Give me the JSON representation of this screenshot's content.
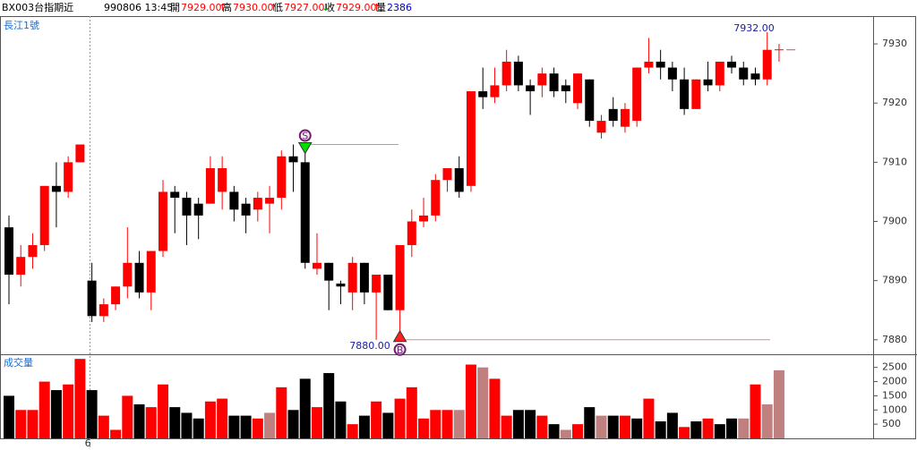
{
  "chart_data": [
    {
      "type": "candlestick",
      "title": "長江1號",
      "header": [
        "BX003台指期近",
        "990806 13:45",
        "開",
        "7929.00",
        "高",
        "7930.00",
        "低",
        "7927.00",
        "收",
        "7929.00",
        "量",
        "2386"
      ],
      "categories": [
        null,
        null,
        null,
        null,
        null,
        null,
        null,
        "6",
        null,
        null,
        null,
        null,
        null,
        null,
        null,
        null,
        null,
        null,
        null,
        null,
        null,
        null,
        null,
        null,
        null,
        null,
        null,
        null,
        null,
        null,
        null,
        null,
        null,
        null,
        null,
        null,
        null,
        null,
        null,
        null,
        null,
        null,
        null,
        null,
        null,
        null,
        null,
        null,
        null,
        null,
        null,
        null,
        null,
        null,
        null,
        null,
        null,
        null,
        null,
        null,
        null,
        null,
        null,
        null,
        null,
        null
      ],
      "open": [
        7899,
        7891,
        7894,
        7896,
        7906,
        7905,
        7910,
        7890,
        7884,
        7886,
        7889,
        7893,
        7888,
        7895,
        7905,
        7904,
        7903,
        7903,
        7905,
        7905,
        7903,
        7902,
        7903,
        7904,
        7911,
        7910,
        7892,
        7893,
        7889.5,
        7888,
        7893,
        7888,
        7891,
        7885,
        7896,
        7900,
        7901,
        7907,
        7909,
        7906,
        7922,
        7921,
        7923,
        7927,
        7923,
        7923,
        7925,
        7923,
        7920,
        7924,
        7915,
        7919,
        7916,
        7917,
        7926,
        7927,
        7926,
        7924,
        7919,
        7924,
        7923,
        7927,
        7926,
        7925,
        7924,
        7929
      ],
      "high": [
        7901,
        7896,
        7898,
        7906,
        7910,
        7911,
        7913,
        7893,
        7887,
        7889,
        7899,
        7895,
        7895,
        7907,
        7906,
        7905,
        7904,
        7911,
        7911,
        7906,
        7904,
        7905,
        7906,
        7912,
        7913,
        7913,
        7898,
        7893,
        7890,
        7894,
        7893,
        7891,
        7891,
        7896,
        7902,
        7904,
        7908,
        7909,
        7911,
        7922,
        7926,
        7926,
        7929,
        7928,
        7924,
        7926,
        7926,
        7924,
        7925,
        7924,
        7918,
        7921,
        7920,
        7926,
        7931,
        7929,
        7927,
        7926,
        7924,
        7927,
        7927,
        7928,
        7927,
        7926,
        7932,
        7930
      ],
      "low": [
        7886,
        7889,
        7892,
        7895,
        7899,
        7904,
        7910,
        7883,
        7883,
        7885,
        7887,
        7887,
        7885,
        7894,
        7898,
        7896,
        7897,
        7903,
        7902,
        7900,
        7898,
        7900,
        7898,
        7902,
        7905,
        7892,
        7891,
        7885,
        7886,
        7885,
        7886,
        7880,
        7885,
        7880,
        7894,
        7899,
        7900,
        7905,
        7904,
        7905,
        7919,
        7920,
        7922,
        7922,
        7918,
        7921,
        7921,
        7920,
        7919,
        7916,
        7914,
        7916,
        7915,
        7916,
        7925,
        7924,
        7922,
        7918,
        7919,
        7922,
        7922,
        7925,
        7923,
        7923,
        7923,
        7927
      ],
      "close": [
        7891,
        7894,
        7896,
        7906,
        7905,
        7910,
        7913,
        7884,
        7886,
        7889,
        7893,
        7888,
        7895,
        7905,
        7904,
        7901,
        7901,
        7909,
        7909,
        7902,
        7901,
        7904,
        7904,
        7911,
        7910,
        7893,
        7893,
        7890,
        7889,
        7893,
        7888,
        7891,
        7885,
        7896,
        7900,
        7901,
        7907,
        7909,
        7905,
        7922,
        7921,
        7923,
        7927,
        7923,
        7922,
        7925,
        7922,
        7922,
        7925,
        7917,
        7917,
        7917,
        7919,
        7926,
        7927,
        7926,
        7924,
        7919,
        7924,
        7923,
        7927,
        7926,
        7924,
        7924,
        7929,
        7929
      ],
      "up_color": "#ff0000",
      "down_color": "#000000",
      "ylim": [
        7877.7,
        7934.7
      ],
      "yticks": [
        7880,
        7890,
        7900,
        7910,
        7920,
        7930
      ],
      "annotations": [
        {
          "value": 7932,
          "label": "7932.00"
        },
        {
          "value": 7880,
          "label": "7880.00"
        }
      ],
      "signals": [
        {
          "label": "S",
          "index": 25,
          "value": 7913,
          "color": "#00dd00"
        },
        {
          "label": "B",
          "index": 33,
          "value": 7880,
          "color": "#ff2020"
        }
      ]
    },
    {
      "type": "bar",
      "title": "成交量",
      "values": [
        1500,
        1000,
        1000,
        2000,
        1700,
        1900,
        2800,
        1700,
        800,
        300,
        1500,
        1200,
        1100,
        1900,
        1100,
        900,
        700,
        1300,
        1400,
        800,
        800,
        700,
        900,
        1800,
        1000,
        2100,
        1100,
        2300,
        1300,
        500,
        800,
        1300,
        900,
        1400,
        1800,
        700,
        1000,
        1000,
        1000,
        2600,
        2500,
        2100,
        800,
        1000,
        1000,
        800,
        500,
        300,
        500,
        1100,
        800,
        800,
        800,
        700,
        1400,
        600,
        900,
        400,
        600,
        700,
        500,
        700,
        700,
        1900,
        1200,
        2400
      ],
      "colors": [
        "#000000",
        "#ff0000",
        "#ff0000",
        "#ff0000",
        "#000000",
        "#ff0000",
        "#ff0000",
        "#000000",
        "#ff0000",
        "#ff0000",
        "#ff0000",
        "#000000",
        "#ff0000",
        "#ff0000",
        "#000000",
        "#000000",
        "#000000",
        "#ff0000",
        "#ff0000",
        "#000000",
        "#000000",
        "#ff0000",
        "#c08080",
        "#ff0000",
        "#000000",
        "#000000",
        "#ff0000",
        "#000000",
        "#000000",
        "#ff0000",
        "#000000",
        "#ff0000",
        "#000000",
        "#ff0000",
        "#ff0000",
        "#ff0000",
        "#ff0000",
        "#ff0000",
        "#c08080",
        "#ff0000",
        "#c08080",
        "#ff0000",
        "#ff0000",
        "#000000",
        "#000000",
        "#ff0000",
        "#000000",
        "#c08080",
        "#ff0000",
        "#000000",
        "#c08080",
        "#000000",
        "#ff0000",
        "#000000",
        "#ff0000",
        "#000000",
        "#000000",
        "#ff0000",
        "#000000",
        "#ff0000",
        "#000000",
        "#000000",
        "#c08080",
        "#ff0000",
        "#c08080",
        "#c08080"
      ],
      "ylim": [
        0,
        2900
      ],
      "yticks": [
        500,
        1000,
        1500,
        2000,
        2500
      ]
    }
  ]
}
